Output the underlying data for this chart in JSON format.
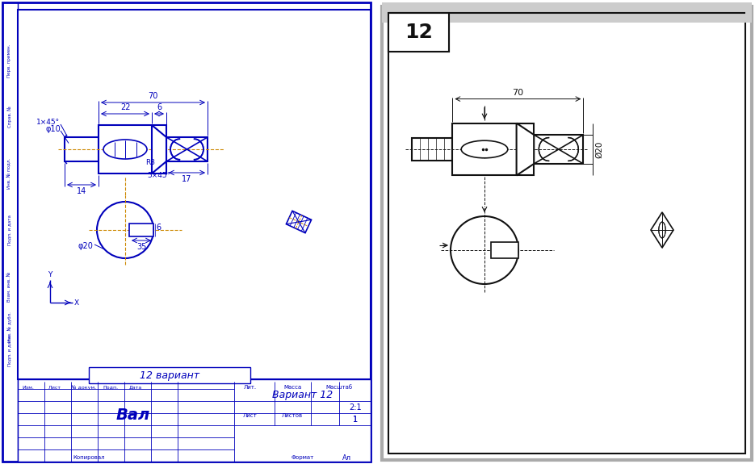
{
  "bg_color": "#ffffff",
  "blue": "#0000bb",
  "black": "#111111",
  "orange": "#cc8800",
  "gray_border": "#888888",
  "title_text": "Вариант 12",
  "drawing_title": "Вал",
  "variant_box_text": "12 вариант",
  "number_label": "12",
  "dim_70": "70",
  "dim_22": "22",
  "dim_6": "6",
  "dim_14": "14",
  "dim_17": "17",
  "dim_R3": "R3",
  "dim_5x45": "5×45°",
  "dim_1x45": "1×45°",
  "dim_phi10": "φ10",
  "dim_phi20": "φ20",
  "dim_phi20_r": "Ø20",
  "dim_35": "35",
  "dim_6b": "6",
  "scale": "2:1",
  "sheet_num": "1",
  "format_text": "Формат",
  "kopir": "Копировал",
  "format_A4": "Ал",
  "liter": "Лит.",
  "massa": "Масса",
  "masshtab": "Масштаб",
  "list": "Лист",
  "listov": "Листов"
}
